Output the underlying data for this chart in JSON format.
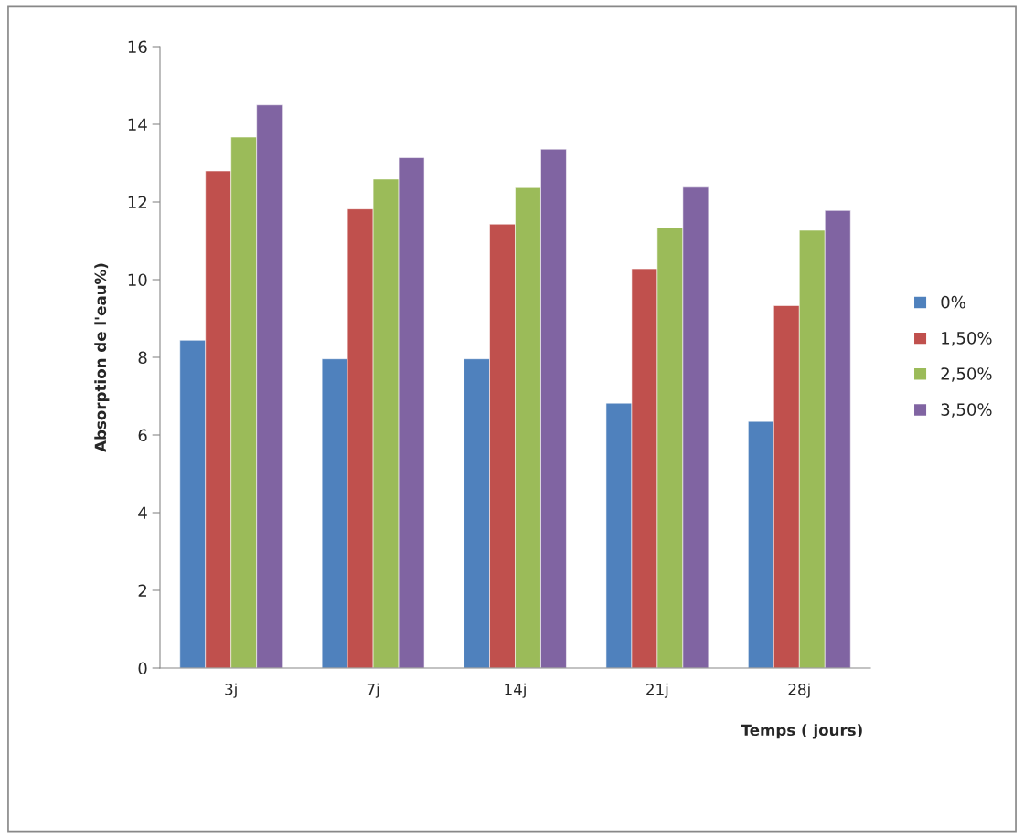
{
  "chart_data": {
    "type": "bar",
    "xlabel": "Temps ( jours)",
    "ylabel": "Absorption de l'eau%)",
    "categories": [
      "3j",
      "7j",
      "14j",
      "21j",
      "28j"
    ],
    "series": [
      {
        "name": "0%",
        "color": "#4f81bd",
        "values": [
          8.44,
          7.96,
          7.96,
          6.82,
          6.35
        ]
      },
      {
        "name": "1,50%",
        "color": "#c0504d",
        "values": [
          12.8,
          11.82,
          11.43,
          10.28,
          9.33
        ]
      },
      {
        "name": "2,50%",
        "color": "#9bbb59",
        "values": [
          13.67,
          12.59,
          12.37,
          11.33,
          11.27
        ]
      },
      {
        "name": "3,50%",
        "color": "#8064a2",
        "values": [
          14.5,
          13.14,
          13.36,
          12.38,
          11.78
        ]
      }
    ],
    "ylim": [
      0,
      16
    ],
    "yticks": [
      0,
      2,
      4,
      6,
      8,
      10,
      12,
      14,
      16
    ],
    "grid": false,
    "legend": "right"
  }
}
